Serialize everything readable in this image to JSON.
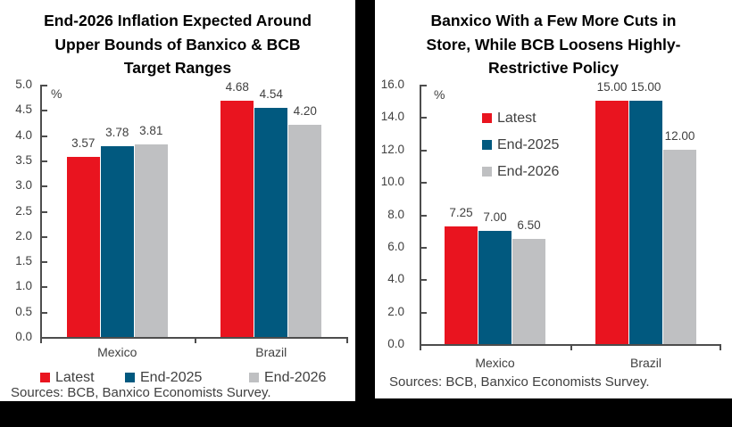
{
  "figure": {
    "background": "#000000",
    "panel_background": "#ffffff",
    "text_color": "#404040",
    "axis_color": "#4d4d4d"
  },
  "chart_data": [
    {
      "type": "bar",
      "title": "End-2026 Inflation Expected Around\nUpper Bounds of Banxico & BCB\nTarget Ranges",
      "unit_label": "%",
      "categories": [
        "Mexico",
        "Brazil"
      ],
      "series": [
        {
          "name": "Latest",
          "color": "#e9141f",
          "values": [
            3.57,
            4.68
          ],
          "value_labels": [
            "3.57",
            "4.68"
          ]
        },
        {
          "name": "End-2025",
          "color": "#01597f",
          "values": [
            3.78,
            4.54
          ],
          "value_labels": [
            "3.78",
            "4.54"
          ]
        },
        {
          "name": "End-2026",
          "color": "#bfc0c2",
          "values": [
            3.81,
            4.2
          ],
          "value_labels": [
            "3.81",
            "4.20"
          ]
        }
      ],
      "ylim": [
        0,
        5
      ],
      "yticks": [
        "5.0",
        "4.5",
        "4.0",
        "3.5",
        "3.0",
        "2.5",
        "2.0",
        "1.5",
        "1.0",
        "0.5",
        "0.0"
      ],
      "grid": false,
      "legend_position": "bottom",
      "source": "Sources: BCB, Banxico Economists Survey."
    },
    {
      "type": "bar",
      "title": "Banxico With a Few More Cuts in\nStore, While BCB Loosens Highly-\nRestrictive Policy",
      "unit_label": "%",
      "categories": [
        "Mexico",
        "Brazil"
      ],
      "series": [
        {
          "name": "Latest",
          "color": "#e9141f",
          "values": [
            7.25,
            15.0
          ],
          "value_labels": [
            "7.25",
            "15.00"
          ]
        },
        {
          "name": "End-2025",
          "color": "#01597f",
          "values": [
            7.0,
            15.0
          ],
          "value_labels": [
            "7.00",
            "15.00"
          ]
        },
        {
          "name": "End-2026",
          "color": "#bfc0c2",
          "values": [
            6.5,
            12.0
          ],
          "value_labels": [
            "6.50",
            "12.00"
          ]
        }
      ],
      "ylim": [
        0,
        16
      ],
      "yticks": [
        "16.0",
        "14.0",
        "12.0",
        "10.0",
        "8.0",
        "6.0",
        "4.0",
        "2.0",
        "0.0"
      ],
      "grid": false,
      "legend_position": "inside",
      "source": "Sources: BCB, Banxico Economists Survey."
    }
  ]
}
